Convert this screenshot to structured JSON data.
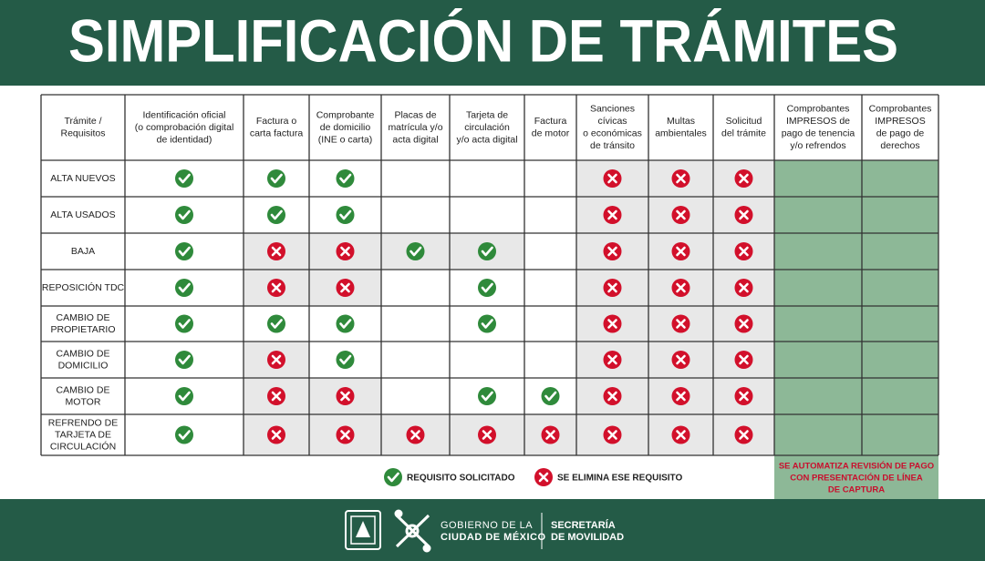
{
  "header": {
    "title": "SIMPLIFICACIÓN DE TRÁMITES"
  },
  "table": {
    "headers": [
      [
        "Trámite /",
        "Requisitos"
      ],
      [
        "Identificación oficial",
        "(o comprobación digital",
        "de identidad)"
      ],
      [
        "Factura o",
        "carta factura"
      ],
      [
        "Comprobante",
        "de domicilio",
        "(INE o carta)"
      ],
      [
        "Placas de",
        "matrícula y/o",
        "acta digital"
      ],
      [
        "Tarjeta de",
        "circulación",
        "y/o acta digital"
      ],
      [
        "Factura",
        "de motor"
      ],
      [
        "Sanciones",
        "cívicas",
        "o económicas",
        "de tránsito"
      ],
      [
        "Multas",
        "ambientales"
      ],
      [
        "Solicitud",
        "del trámite"
      ],
      [
        "Comprobantes",
        "IMPRESOS de",
        "pago de tenencia",
        "y/o refrendos"
      ],
      [
        "Comprobantes",
        "IMPRESOS",
        "de pago de",
        "derechos"
      ]
    ],
    "rows": [
      [
        "ALTA NUEVOS"
      ],
      [
        "ALTA USADOS"
      ],
      [
        "BAJA"
      ],
      [
        "REPOSICIÓN TDC"
      ],
      [
        "CAMBIO DE",
        "PROPIETARIO"
      ],
      [
        "CAMBIO DE",
        "DOMICILIO"
      ],
      [
        "CAMBIO DE",
        "MOTOR"
      ],
      [
        "REFRENDO DE",
        "TARJETA DE",
        "CIRCULACIÓN"
      ]
    ],
    "note": [
      "SE AUTOMATIZA REVISIÓN DE PAGO",
      "CON PRESENTACIÓN DE LÍNEA",
      "DE CAPTURA"
    ]
  },
  "legend": {
    "requested": "REQUISITO SOLICITADO",
    "removed": "SE ELIMINA ESE REQUISITO"
  },
  "footer": {
    "government": [
      "GOBIERNO DE LA",
      "CIUDAD DE MÉXICO"
    ],
    "secretariat": [
      "SECRETARÍA",
      "DE MOVILIDAD"
    ]
  }
}
